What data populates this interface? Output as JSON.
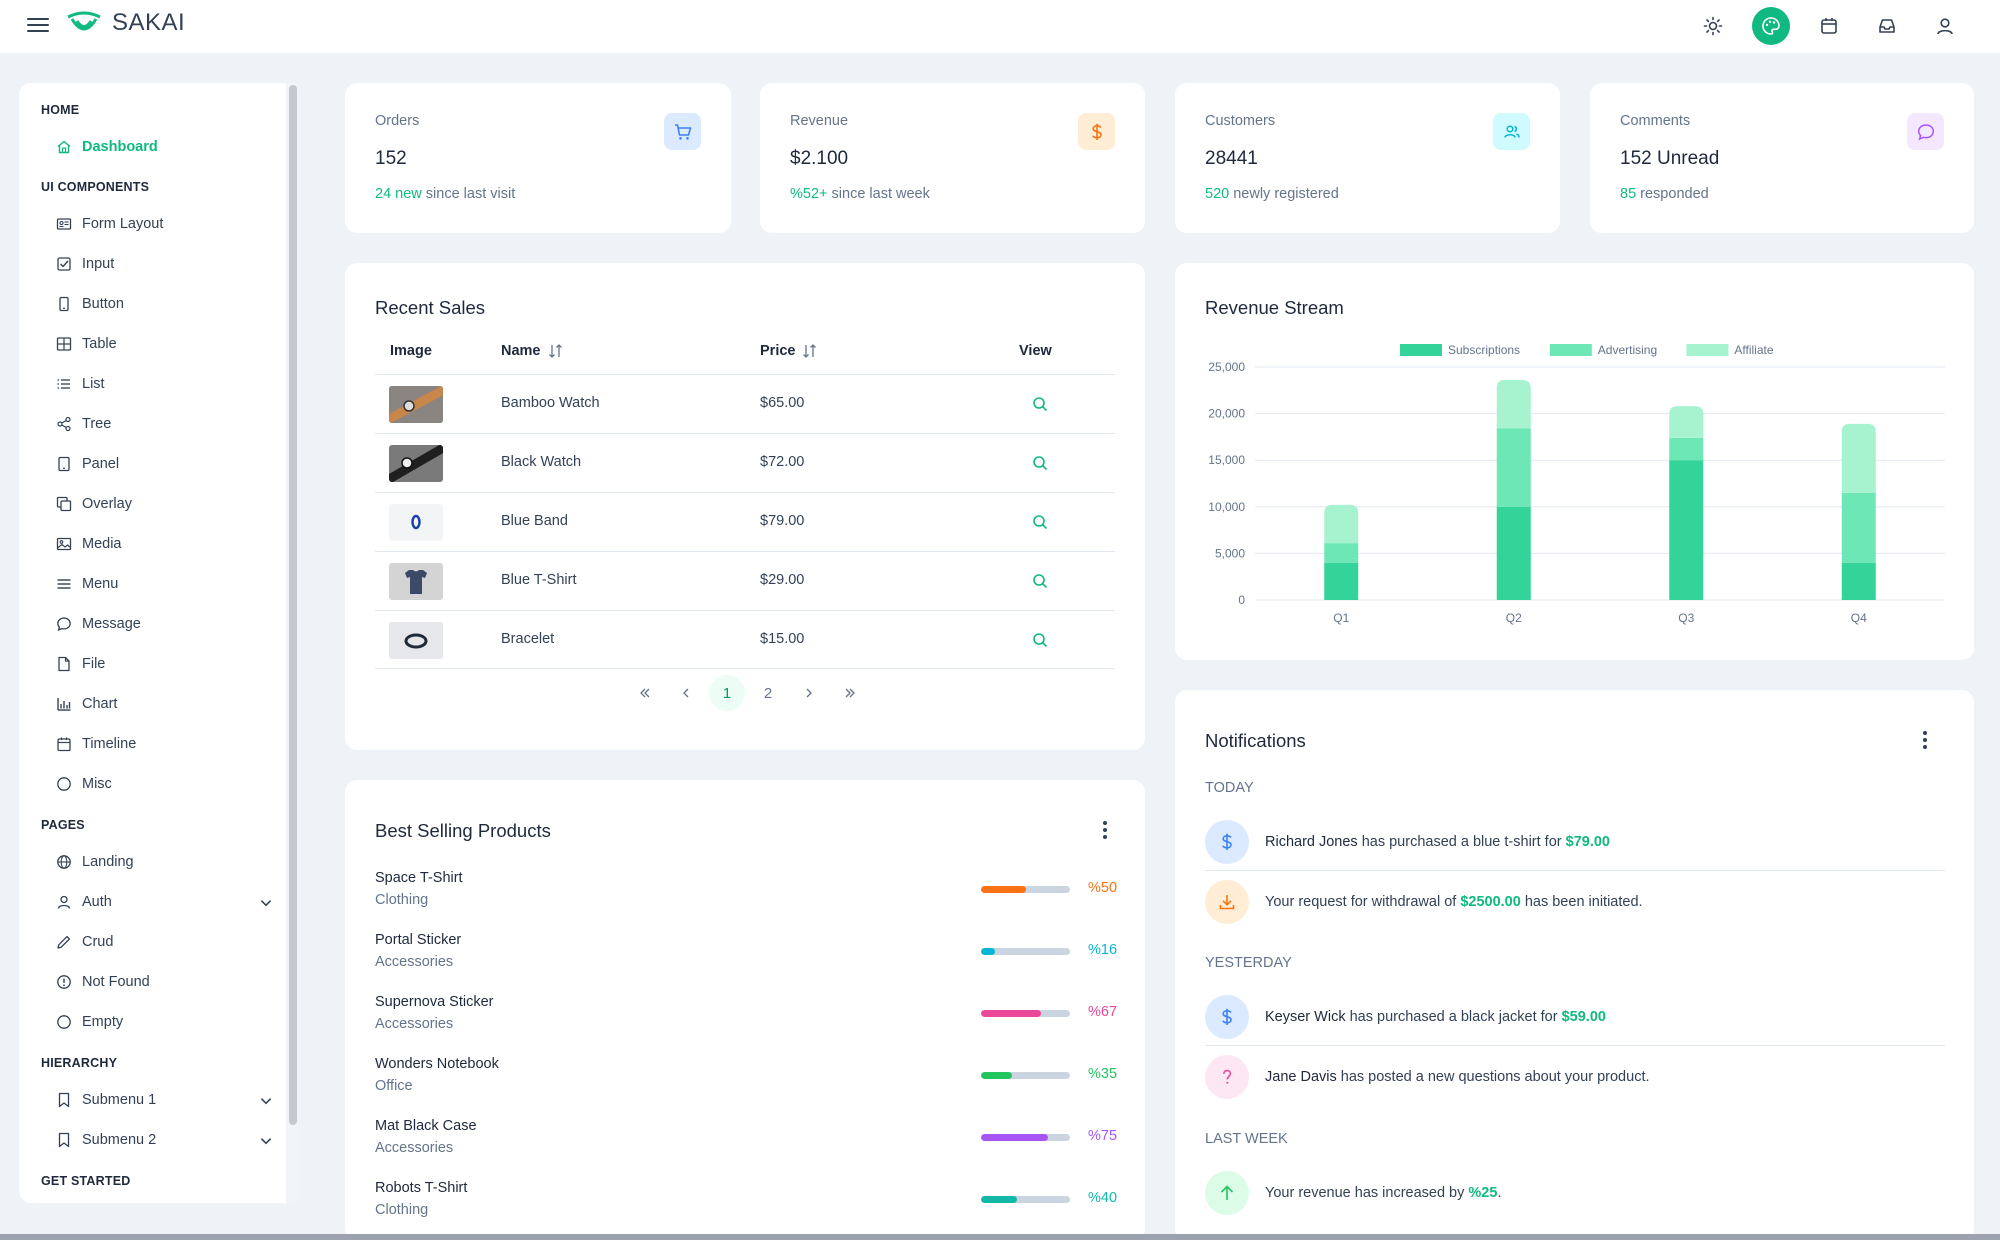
{
  "app": {
    "name": "SAKAI"
  },
  "topbar": {
    "icons": [
      "sun-icon",
      "palette-icon",
      "calendar-icon",
      "inbox-icon",
      "user-icon"
    ]
  },
  "sidebar": {
    "sections": [
      {
        "title": "HOME",
        "items": [
          {
            "label": "Dashboard",
            "icon": "home-icon",
            "active": true
          }
        ]
      },
      {
        "title": "UI COMPONENTS",
        "items": [
          {
            "label": "Form Layout",
            "icon": "id-card-icon"
          },
          {
            "label": "Input",
            "icon": "check-square-icon"
          },
          {
            "label": "Button",
            "icon": "mobile-icon"
          },
          {
            "label": "Table",
            "icon": "table-icon"
          },
          {
            "label": "List",
            "icon": "list-icon"
          },
          {
            "label": "Tree",
            "icon": "share-icon"
          },
          {
            "label": "Panel",
            "icon": "tablet-icon"
          },
          {
            "label": "Overlay",
            "icon": "clone-icon"
          },
          {
            "label": "Media",
            "icon": "image-icon"
          },
          {
            "label": "Menu",
            "icon": "bars-icon"
          },
          {
            "label": "Message",
            "icon": "comment-icon"
          },
          {
            "label": "File",
            "icon": "file-icon"
          },
          {
            "label": "Chart",
            "icon": "chart-bar-icon"
          },
          {
            "label": "Timeline",
            "icon": "calendar-icon"
          },
          {
            "label": "Misc",
            "icon": "circle-icon"
          }
        ]
      },
      {
        "title": "PAGES",
        "items": [
          {
            "label": "Landing",
            "icon": "globe-icon"
          },
          {
            "label": "Auth",
            "icon": "user-icon",
            "expandable": true
          },
          {
            "label": "Crud",
            "icon": "pencil-icon"
          },
          {
            "label": "Not Found",
            "icon": "exclamation-circle-icon"
          },
          {
            "label": "Empty",
            "icon": "circle-icon"
          }
        ]
      },
      {
        "title": "HIERARCHY",
        "items": [
          {
            "label": "Submenu 1",
            "icon": "bookmark-icon",
            "expandable": true
          },
          {
            "label": "Submenu 2",
            "icon": "bookmark-icon",
            "expandable": true
          }
        ]
      },
      {
        "title": "GET STARTED",
        "items": []
      }
    ]
  },
  "stats": [
    {
      "label": "Orders",
      "value": "152",
      "highlight": "24 new",
      "sub": " since last visit",
      "icon": "shopping-cart-icon",
      "icon_color": "#3b82f6",
      "icon_bg": "#dbeafe"
    },
    {
      "label": "Revenue",
      "value": "$2.100",
      "highlight": "%52+",
      "sub": " since last week",
      "icon": "dollar-icon",
      "icon_color": "#f97316",
      "icon_bg": "#ffedd5"
    },
    {
      "label": "Customers",
      "value": "28441",
      "highlight": "520",
      "sub": " newly registered",
      "icon": "users-icon",
      "icon_color": "#06b6d4",
      "icon_bg": "#cffafe"
    },
    {
      "label": "Comments",
      "value": "152 Unread",
      "highlight": "85",
      "sub": " responded",
      "icon": "comment-icon",
      "icon_color": "#a855f7",
      "icon_bg": "#f3e8ff"
    }
  ],
  "recent_sales": {
    "title": "Recent Sales",
    "columns": {
      "image": "Image",
      "name": "Name",
      "price": "Price",
      "view": "View"
    },
    "rows": [
      {
        "name": "Bamboo Watch",
        "price": "$65.00",
        "thumb": "watch"
      },
      {
        "name": "Black Watch",
        "price": "$72.00",
        "thumb": "watch-black"
      },
      {
        "name": "Blue Band",
        "price": "$79.00",
        "thumb": "band"
      },
      {
        "name": "Blue T-Shirt",
        "price": "$29.00",
        "thumb": "tshirt"
      },
      {
        "name": "Bracelet",
        "price": "$15.00",
        "thumb": "bracelet"
      }
    ],
    "pagination": {
      "pages": [
        "1",
        "2"
      ],
      "current": "1"
    }
  },
  "best_selling": {
    "title": "Best Selling Products",
    "items": [
      {
        "name": "Space T-Shirt",
        "category": "Clothing",
        "percent": 50,
        "label": "%50",
        "color": "#f97316"
      },
      {
        "name": "Portal Sticker",
        "category": "Accessories",
        "percent": 16,
        "label": "%16",
        "color": "#06b6d4"
      },
      {
        "name": "Supernova Sticker",
        "category": "Accessories",
        "percent": 67,
        "label": "%67",
        "color": "#ec4899"
      },
      {
        "name": "Wonders Notebook",
        "category": "Office",
        "percent": 35,
        "label": "%35",
        "color": "#22c55e"
      },
      {
        "name": "Mat Black Case",
        "category": "Accessories",
        "percent": 75,
        "label": "%75",
        "color": "#a855f7"
      },
      {
        "name": "Robots T-Shirt",
        "category": "Clothing",
        "percent": 40,
        "label": "%40",
        "color": "#14b8a6"
      }
    ]
  },
  "revenue_stream": {
    "title": "Revenue Stream",
    "chart_data": {
      "type": "bar",
      "stacked": true,
      "categories": [
        "Q1",
        "Q2",
        "Q3",
        "Q4"
      ],
      "series": [
        {
          "name": "Subscriptions",
          "values": [
            4000,
            10000,
            15000,
            4000
          ],
          "color": "#34d399"
        },
        {
          "name": "Advertising",
          "values": [
            2100,
            8400,
            2400,
            7500
          ],
          "color": "#6ee7b7"
        },
        {
          "name": "Affiliate",
          "values": [
            4100,
            5200,
            3400,
            7400
          ],
          "color": "#a7f3d0"
        }
      ],
      "ylim": [
        0,
        25000
      ],
      "yticks": [
        "0",
        "5,000",
        "10,000",
        "15,000",
        "20,000",
        "25,000"
      ],
      "legend": "top-center",
      "grid": true
    }
  },
  "notifications": {
    "title": "Notifications",
    "groups": [
      {
        "label": "TODAY",
        "items": [
          {
            "icon": "dollar-icon",
            "color": "#3b82f6",
            "bg": "#dbeafe",
            "strong": "Richard Jones",
            "text": " has purchased a blue t-shirt for ",
            "amount": "$79.00",
            "after": ""
          },
          {
            "icon": "download-icon",
            "color": "#f97316",
            "bg": "#ffedd5",
            "strong": "",
            "text": "Your request for withdrawal of ",
            "amount": "$2500.00",
            "after": " has been initiated."
          }
        ]
      },
      {
        "label": "YESTERDAY",
        "items": [
          {
            "icon": "dollar-icon",
            "color": "#3b82f6",
            "bg": "#dbeafe",
            "strong": "Keyser Wick",
            "text": " has purchased a black jacket for ",
            "amount": "$59.00",
            "after": ""
          },
          {
            "icon": "question-icon",
            "color": "#ec4899",
            "bg": "#fce7f3",
            "strong": "Jane Davis",
            "text": " has posted a new questions about your product.",
            "amount": "",
            "after": ""
          }
        ]
      },
      {
        "label": "LAST WEEK",
        "items": [
          {
            "icon": "arrow-up-icon",
            "color": "#22c55e",
            "bg": "#dcfce7",
            "strong": "",
            "text": "Your revenue has increased by ",
            "amount": "%25",
            "after": "."
          }
        ]
      }
    ]
  }
}
